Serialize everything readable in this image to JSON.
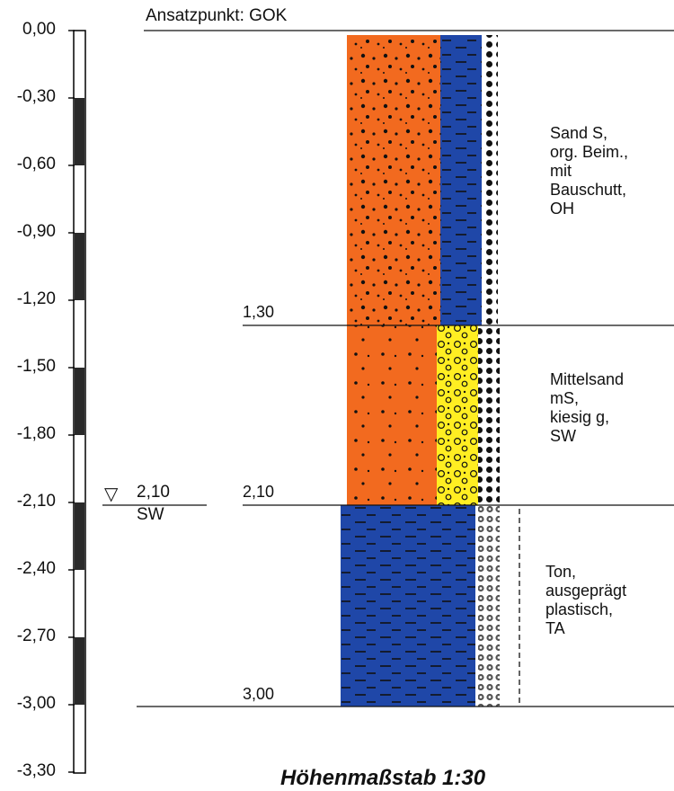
{
  "header": {
    "reference": "Ansatzpunkt: GOK"
  },
  "scale": {
    "ticks": [
      "0,00",
      "-0,30",
      "-0,60",
      "-0,90",
      "-1,20",
      "-1,50",
      "-1,80",
      "-2,10",
      "-2,40",
      "-2,70",
      "-3,00",
      "-3,30"
    ]
  },
  "groundwater": {
    "symbol": "▽",
    "depth": "2,10",
    "label": "SW"
  },
  "layers": [
    {
      "top": 0.0,
      "bottom": 1.3,
      "bottom_label": "1,30",
      "description": "Sand S,\norg. Beim.,\nmit\nBauschutt,\nOH",
      "fill_left": "#f26a1f",
      "fill_right": "#1f47a8"
    },
    {
      "top": 1.3,
      "bottom": 2.1,
      "bottom_label": "2,10",
      "description": "Mittelsand\nmS,\nkiesig g,\nSW",
      "fill_left": "#f26a1f",
      "fill_right": "#ffee22"
    },
    {
      "top": 2.1,
      "bottom": 3.0,
      "bottom_label": "3,00",
      "description": "Ton,\nausgeprägt\nplastisch,\nTA",
      "fill_left": "#1f47a8",
      "fill_right": "#1f47a8"
    }
  ],
  "footer": {
    "title": "Höhenmaßstab 1:30"
  }
}
